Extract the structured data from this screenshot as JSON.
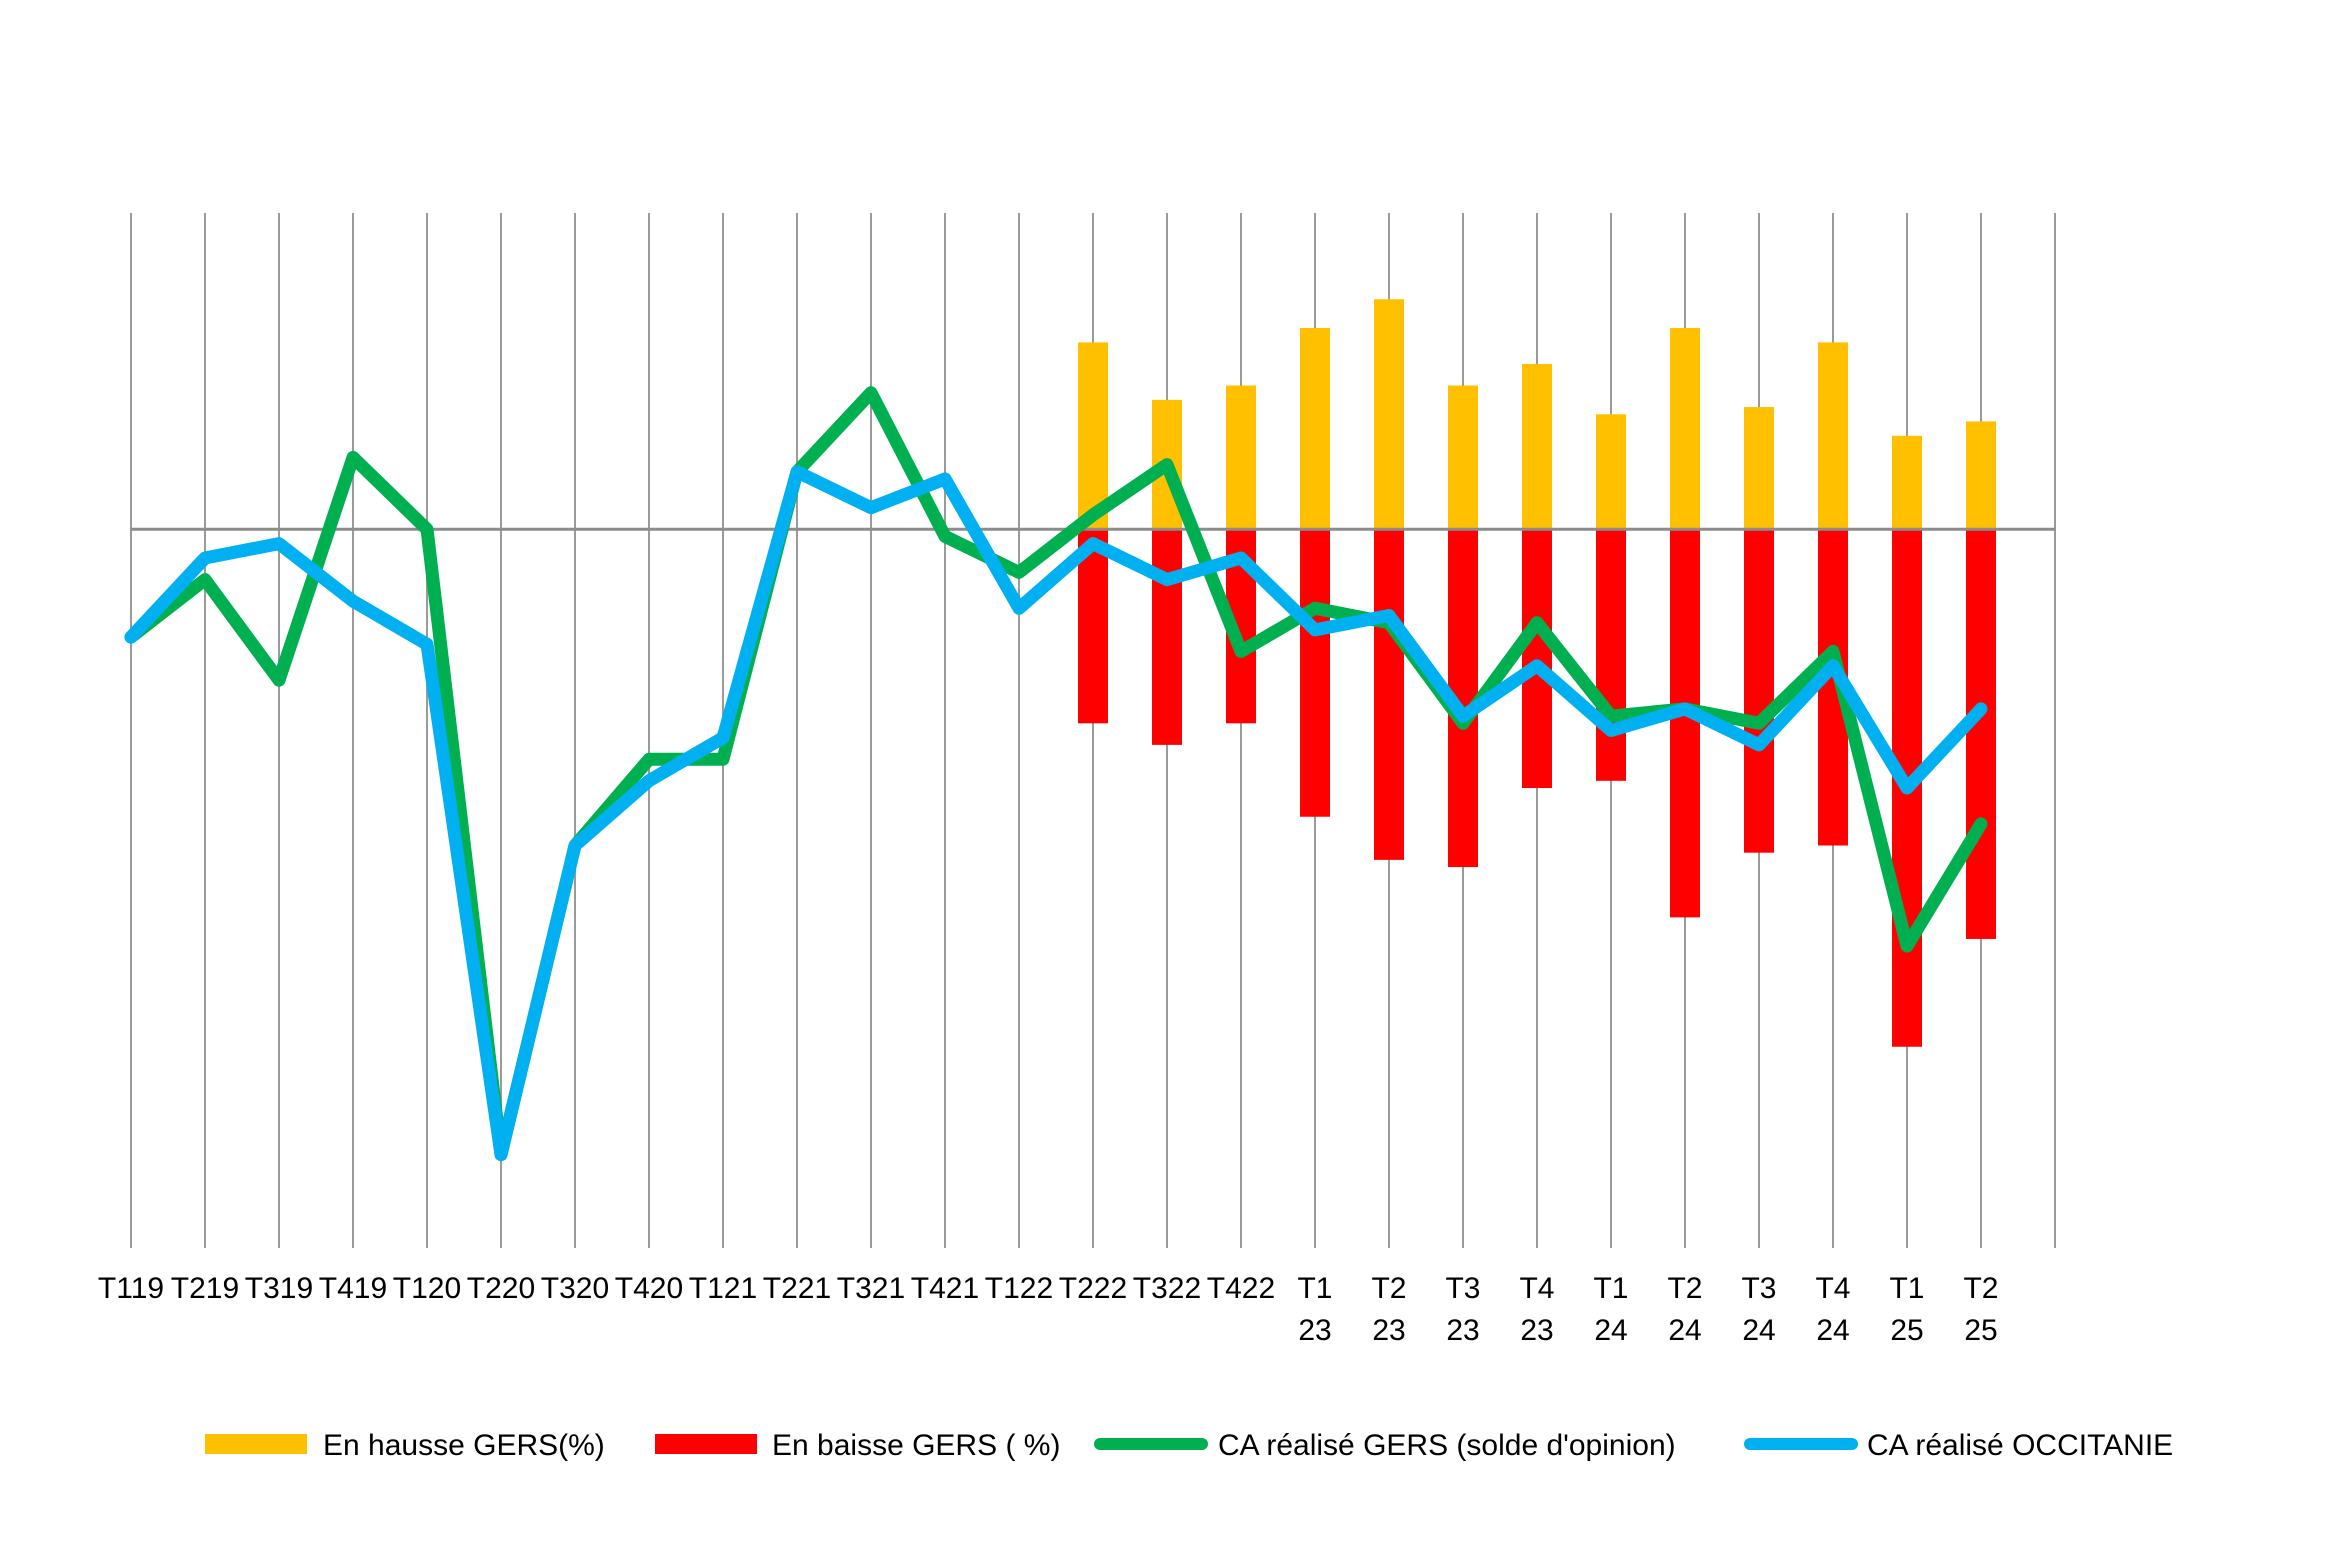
{
  "chart_data": {
    "type": "bar",
    "categories": [
      [
        "T119"
      ],
      [
        "T219"
      ],
      [
        "T319"
      ],
      [
        "T419"
      ],
      [
        "T120"
      ],
      [
        "T220"
      ],
      [
        "T320"
      ],
      [
        "T420"
      ],
      [
        "T121"
      ],
      [
        "T221"
      ],
      [
        "T321"
      ],
      [
        "T421"
      ],
      [
        "T122"
      ],
      [
        "T222"
      ],
      [
        "T322"
      ],
      [
        "T422"
      ],
      [
        "T1",
        "23"
      ],
      [
        "T2",
        "23"
      ],
      [
        "T3",
        "23"
      ],
      [
        "T4",
        "23"
      ],
      [
        "T1",
        "24"
      ],
      [
        "T2",
        "24"
      ],
      [
        "T3",
        "24"
      ],
      [
        "T4",
        "24"
      ],
      [
        "T1",
        "25"
      ],
      [
        "T2",
        "25"
      ]
    ],
    "ylim": [
      -100,
      44
    ],
    "grid": "vertical",
    "legend_position": "bottom",
    "title": "",
    "xlabel": "",
    "ylabel": "",
    "series": [
      {
        "name": "En hausse GERS(%)",
        "kind": "bar",
        "color": "#FFC000",
        "values": [
          null,
          null,
          null,
          null,
          null,
          null,
          null,
          null,
          null,
          null,
          null,
          null,
          null,
          26,
          18,
          20,
          28,
          32,
          20,
          23,
          16,
          28,
          17,
          26,
          13,
          15
        ]
      },
      {
        "name": "En baisse GERS ( %)",
        "kind": "bar",
        "color": "#FF0000",
        "values": [
          null,
          null,
          null,
          null,
          null,
          null,
          null,
          null,
          null,
          null,
          null,
          null,
          null,
          -27,
          -30,
          -27,
          -40,
          -46,
          -47,
          -36,
          -35,
          -54,
          -45,
          -44,
          -72,
          -57
        ]
      },
      {
        "name": "CA réalisé GERS (solde d'opinion)",
        "kind": "line",
        "color": "#00B050",
        "values": [
          -15,
          -7,
          -21,
          10,
          0,
          -87,
          -44,
          -32,
          -32,
          8,
          19,
          -1,
          -6,
          2,
          9,
          -17,
          -11,
          -13,
          -27,
          -13,
          -26,
          -25,
          -27,
          -17,
          -58,
          -41
        ]
      },
      {
        "name": "CA réalisé OCCITANIE",
        "kind": "line",
        "color": "#00B0F0",
        "values": [
          -15,
          -4,
          -2,
          -10,
          -16,
          -87,
          -44,
          -35,
          -29,
          8,
          3,
          7,
          -11,
          -2,
          -7,
          -4,
          -14,
          -12,
          -26,
          -19,
          -28,
          -25,
          -30,
          -19,
          -36,
          -25
        ]
      }
    ]
  }
}
